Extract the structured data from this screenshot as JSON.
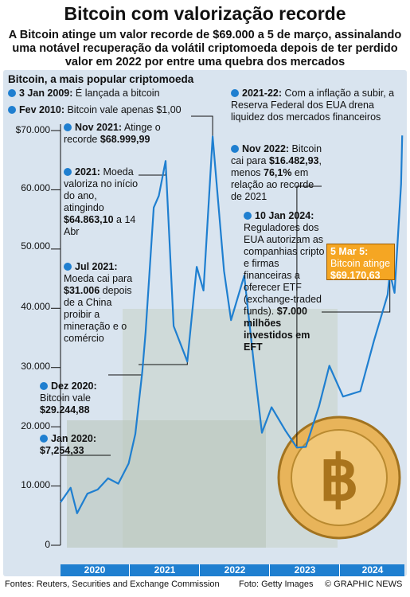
{
  "title": "Bitcoin com valorização recorde",
  "subtitle": "A Bitcoin atinge um valor recorde de $69.000 a 5 de março, assinalando uma notável recuperação da volátil criptomoeda depois de ter perdido valor em 2022 por entre uma quebra dos mercados",
  "panel_heading": "Bitcoin, a mais popular criptomoeda",
  "notes": {
    "n2009_date": "3 Jan 2009:",
    "n2009_text": " É lançada a bitcoin",
    "n2010_date": "Fev 2010:",
    "n2010_text": " Bitcoin vale apenas $1,00",
    "nov2021_date": "Nov 2021:",
    "nov2021_text": " Atinge o recorde ",
    "nov2021_val": "$68.999,99",
    "y2021_date": "2021:",
    "y2021_text": " Moeda valoriza no início do ano, atingindo ",
    "y2021_val": "$64.863,10",
    "y2021_tail": " a 14 Abr",
    "jul2021_date": "Jul 2021:",
    "jul2021_text": " Moeda cai para ",
    "jul2021_val": "$31.006",
    "jul2021_tail": " depois de a China proibir a mineração e o comércio",
    "dez2020_date": "Dez 2020:",
    "dez2020_text": " Bitcoin vale ",
    "dez2020_val": "$29.244,88",
    "jan2020_date": "Jan 2020:",
    "jan2020_val": "$7,254,33",
    "y2122_date": "2021-22:",
    "y2122_text": " Com a inflação a subir, a Reserva Federal dos EUA drena liquidez dos mercados financeiros",
    "nov2022_date": "Nov 2022:",
    "nov2022_text": " Bitcoin cai para ",
    "nov2022_val": "$16.482,93",
    "nov2022_text2": ", menos ",
    "nov2022_pct": "76,1%",
    "nov2022_tail": " em relação ao recorde de 2021",
    "jan2024_date": "10 Jan 2024:",
    "jan2024_text": " Reguladores dos EUA autorizam as companhias cripto e firmas financeiras a oferecer ETF (exchange-traded funds). ",
    "jan2024_val": "$7.000 milhões investidos em EFT",
    "mar5_date": "5 Mar 5:",
    "mar5_text": "Bitcoin atinge",
    "mar5_val": "$69.170,63"
  },
  "footer": {
    "sources": "Fontes: Reuters, Securities and Exchange Commission",
    "photo": "Foto: Getty Images",
    "credit": "© GRAPHIC NEWS"
  },
  "colors": {
    "line": "#1f7fd0",
    "panel": "#d9e4ef",
    "highlight": "#f5a623",
    "axis": "#111111"
  },
  "chart_data": {
    "type": "line",
    "title": "Bitcoin, a mais popular criptomoeda",
    "xlabel": "",
    "ylabel": "",
    "ylim": [
      0,
      70000
    ],
    "yticks": [
      0,
      10000,
      20000,
      30000,
      40000,
      50000,
      60000,
      70000
    ],
    "ytick_labels": [
      "0",
      "10.000",
      "20.000",
      "30.000",
      "40.000",
      "50.000",
      "60.000",
      "$70.000"
    ],
    "x_categories": [
      "2020",
      "2021",
      "2022",
      "2023",
      "2024"
    ],
    "series": [
      {
        "x": [
          "2020-01-01",
          "2020-02-15",
          "2020-03-15",
          "2020-04-30",
          "2020-06-15",
          "2020-07-31",
          "2020-09-15",
          "2020-10-31",
          "2020-11-30",
          "2020-12-31",
          "2021-01-15",
          "2021-02-20",
          "2021-03-15",
          "2021-04-14",
          "2021-05-20",
          "2021-07-20",
          "2021-08-31",
          "2021-09-30",
          "2021-11-10",
          "2021-12-31",
          "2022-01-31",
          "2022-03-31",
          "2022-05-15",
          "2022-06-18",
          "2022-07-31",
          "2022-09-30",
          "2022-11-21",
          "2022-12-31",
          "2023-02-28",
          "2023-04-15",
          "2023-06-15",
          "2023-08-31",
          "2023-10-31",
          "2023-12-31",
          "2024-01-10",
          "2024-01-31",
          "2024-02-29",
          "2024-03-05"
        ],
        "values": [
          7254,
          9700,
          5400,
          8700,
          9400,
          11300,
          10400,
          13800,
          18800,
          29245,
          36000,
          57000,
          59000,
          64863,
          37000,
          31006,
          47000,
          43000,
          68999,
          46300,
          38000,
          45500,
          30000,
          19000,
          23300,
          19400,
          16483,
          16600,
          23500,
          30300,
          25100,
          26000,
          34500,
          42300,
          46000,
          42600,
          61000,
          69170
        ]
      }
    ]
  }
}
